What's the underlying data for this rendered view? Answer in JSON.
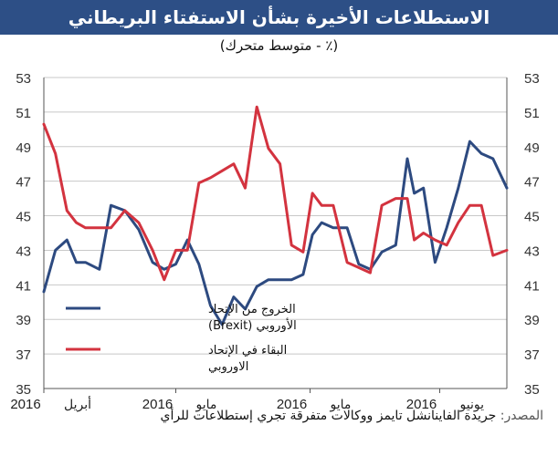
{
  "header": {
    "title": "الاستطلاعات الأخيرة بشأن الاستفتاء البريطاني",
    "subtitle": "(٪ - متوسط متحرك)"
  },
  "source": {
    "label": "المصدر:",
    "text": "جريدة الفاينانشل تايمز ووكالات متفرقة تجري إستطلاعات للرأي"
  },
  "colors": {
    "title_bg": "#2d4f86",
    "leave": "#2d4a80",
    "remain": "#d3333f",
    "grid": "#c8c8c8"
  },
  "chart_data": {
    "type": "line",
    "ylim": [
      35,
      53
    ],
    "yticks": [
      35,
      37,
      39,
      41,
      43,
      45,
      47,
      49,
      51,
      53
    ],
    "grid": "horizontal",
    "x_tick_labels": [
      {
        "month": "أبريل",
        "year": "2016",
        "x": 0
      },
      {
        "month": "مايو",
        "year": "2016",
        "x": 0.285
      },
      {
        "month": "مايو",
        "year": "2016",
        "x": 0.575
      },
      {
        "month": "يونيو",
        "year": "2016",
        "x": 0.855
      }
    ],
    "series": [
      {
        "name": "الخروج من الإتحاد الأوروبي (Brexit)",
        "color": "#2d4a80",
        "x": [
          0,
          0.025,
          0.05,
          0.07,
          0.09,
          0.12,
          0.145,
          0.175,
          0.205,
          0.235,
          0.26,
          0.285,
          0.31,
          0.335,
          0.36,
          0.385,
          0.41,
          0.435,
          0.46,
          0.485,
          0.51,
          0.535,
          0.56,
          0.58,
          0.6,
          0.625,
          0.655,
          0.68,
          0.705,
          0.73,
          0.76,
          0.785,
          0.8,
          0.82,
          0.845,
          0.87,
          0.895,
          0.92,
          0.945,
          0.97,
          1
        ],
        "y": [
          40.6,
          43.0,
          43.6,
          42.3,
          42.3,
          41.9,
          45.6,
          45.3,
          44.2,
          42.3,
          41.9,
          42.2,
          43.6,
          42.2,
          39.8,
          38.7,
          40.3,
          39.6,
          40.9,
          41.3,
          41.3,
          41.3,
          41.6,
          43.9,
          44.6,
          44.3,
          44.3,
          42.2,
          41.9,
          42.9,
          43.3,
          48.3,
          46.3,
          46.6,
          42.3,
          44.3,
          46.6,
          49.3,
          48.6,
          48.3,
          46.6
        ]
      },
      {
        "name": "البقاء في الإتحاد الاوروبي",
        "color": "#d3333f",
        "x": [
          0,
          0.025,
          0.05,
          0.07,
          0.09,
          0.12,
          0.145,
          0.175,
          0.205,
          0.235,
          0.26,
          0.285,
          0.31,
          0.335,
          0.36,
          0.385,
          0.41,
          0.435,
          0.46,
          0.485,
          0.51,
          0.535,
          0.56,
          0.58,
          0.6,
          0.625,
          0.655,
          0.68,
          0.705,
          0.73,
          0.76,
          0.785,
          0.8,
          0.82,
          0.845,
          0.87,
          0.895,
          0.92,
          0.945,
          0.97,
          1
        ],
        "y": [
          50.3,
          48.6,
          45.3,
          44.6,
          44.3,
          44.3,
          44.3,
          45.3,
          44.6,
          43.0,
          41.3,
          43.0,
          43.0,
          46.9,
          47.2,
          47.6,
          48.0,
          46.6,
          51.3,
          48.9,
          48.0,
          43.3,
          42.9,
          46.3,
          45.6,
          45.6,
          42.3,
          42.0,
          41.7,
          45.6,
          46.0,
          46.0,
          43.6,
          44.0,
          43.6,
          43.3,
          44.6,
          45.6,
          45.6,
          42.7,
          43.0
        ]
      }
    ]
  }
}
